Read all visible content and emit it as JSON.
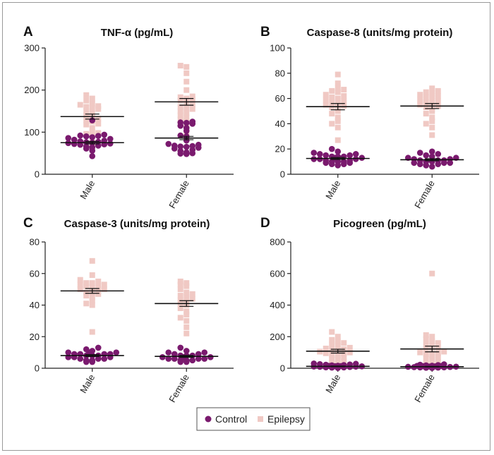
{
  "colors": {
    "control": "#7a1a6e",
    "epilepsy": "#f0c9c4",
    "axis": "#222222",
    "mean": "#111111"
  },
  "legend": {
    "control_label": "Control",
    "epilepsy_label": "Epilepsy"
  },
  "chart_data": [
    {
      "type": "scatter",
      "panel": "A",
      "title": "TNF-α (pg/mL)",
      "categories": [
        "Male",
        "Female"
      ],
      "ylim": [
        0,
        300
      ],
      "yticks": [
        0,
        100,
        200,
        300
      ],
      "series": [
        {
          "name": "Control",
          "mean": [
            75,
            86
          ],
          "sem": [
            3,
            4
          ],
          "values": [
            [
              43,
              56,
              61,
              64,
              66,
              68,
              70,
              71,
              72,
              73,
              74,
              75,
              76,
              77,
              78,
              80,
              82,
              84,
              86,
              88,
              90,
              91,
              92,
              94,
              128
            ],
            [
              48,
              49,
              50,
              52,
              55,
              58,
              61,
              63,
              65,
              66,
              67,
              68,
              70,
              72,
              80,
              90,
              92,
              103,
              110,
              115,
              120,
              122,
              123,
              125
            ]
          ]
        },
        {
          "name": "Epilepsy",
          "mean": [
            137,
            172
          ],
          "sem": [
            6,
            8
          ],
          "values": [
            [
              68,
              76,
              93,
              96,
              98,
              100,
              110,
              118,
              120,
              125,
              128,
              132,
              135,
              140,
              145,
              150,
              155,
              158,
              160,
              162,
              165,
              168,
              175,
              180,
              188
            ],
            [
              85,
              95,
              110,
              120,
              125,
              130,
              135,
              140,
              145,
              150,
              155,
              158,
              160,
              165,
              170,
              175,
              178,
              180,
              183,
              185,
              200,
              220,
              240,
              255,
              258
            ]
          ]
        }
      ]
    },
    {
      "type": "scatter",
      "panel": "B",
      "title": "Caspase-8 (units/mg protein)",
      "categories": [
        "Male",
        "Female"
      ],
      "ylim": [
        0,
        100
      ],
      "yticks": [
        0,
        20,
        40,
        60,
        80,
        100
      ],
      "series": [
        {
          "name": "Control",
          "mean": [
            12.5,
            11.5
          ],
          "sem": [
            0.8,
            0.8
          ],
          "values": [
            [
              7,
              8,
              8,
              9,
              9,
              10,
              10,
              11,
              11,
              12,
              12,
              13,
              13,
              14,
              14,
              15,
              15,
              16,
              16,
              17,
              18,
              20,
              10,
              12,
              14
            ],
            [
              6,
              7,
              8,
              8,
              9,
              9,
              10,
              10,
              11,
              11,
              12,
              12,
              13,
              13,
              14,
              15,
              16,
              17,
              18,
              9,
              11
            ]
          ]
        },
        {
          "name": "Epilepsy",
          "mean": [
            53.5,
            54
          ],
          "sem": [
            2.5,
            2
          ],
          "values": [
            [
              27,
              37,
              40,
              42,
              45,
              48,
              50,
              52,
              53,
              54,
              55,
              56,
              57,
              58,
              59,
              60,
              61,
              62,
              63,
              65,
              66,
              67,
              68,
              72,
              79
            ],
            [
              31,
              37,
              40,
              42,
              45,
              48,
              50,
              52,
              53,
              54,
              55,
              56,
              57,
              58,
              59,
              60,
              61,
              62,
              63,
              64,
              65,
              66,
              68
            ]
          ]
        }
      ]
    },
    {
      "type": "scatter",
      "panel": "C",
      "title": "Caspase-3 (units/mg protein)",
      "categories": [
        "Male",
        "Female"
      ],
      "ylim": [
        0,
        80
      ],
      "yticks": [
        0,
        20,
        40,
        60,
        80
      ],
      "series": [
        {
          "name": "Control",
          "mean": [
            8,
            7.5
          ],
          "sem": [
            0.6,
            0.6
          ],
          "values": [
            [
              4,
              4,
              5,
              5,
              6,
              6,
              6,
              7,
              7,
              8,
              8,
              8,
              9,
              9,
              9,
              10,
              10,
              10,
              11,
              12,
              13,
              7,
              9
            ],
            [
              4,
              4,
              5,
              5,
              5,
              6,
              6,
              6,
              7,
              7,
              7,
              8,
              8,
              8,
              9,
              9,
              10,
              10,
              11,
              13,
              6
            ]
          ]
        },
        {
          "name": "Epilepsy",
          "mean": [
            49,
            41
          ],
          "sem": [
            1.5,
            1.8
          ],
          "values": [
            [
              23,
              40,
              41,
              43,
              45,
              46,
              47,
              48,
              49,
              50,
              51,
              52,
              52,
              53,
              53,
              54,
              54,
              55,
              56,
              59,
              68,
              48,
              50
            ],
            [
              22,
              26,
              30,
              32,
              34,
              36,
              38,
              40,
              41,
              42,
              43,
              44,
              45,
              46,
              47,
              48,
              50,
              52,
              53,
              54,
              55
            ]
          ]
        }
      ]
    },
    {
      "type": "scatter",
      "panel": "D",
      "title": "Picogreen (pg/mL)",
      "categories": [
        "Male",
        "Female"
      ],
      "ylim": [
        0,
        800
      ],
      "yticks": [
        0,
        200,
        400,
        600,
        800
      ],
      "series": [
        {
          "name": "Control",
          "mean": [
            12,
            10
          ],
          "sem": [
            2,
            2
          ],
          "values": [
            [
              2,
              4,
              5,
              6,
              8,
              9,
              10,
              11,
              12,
              13,
              14,
              15,
              16,
              18,
              20,
              22,
              24,
              26,
              28,
              30
            ],
            [
              2,
              3,
              4,
              5,
              6,
              7,
              8,
              9,
              10,
              11,
              12,
              13,
              14,
              15,
              16,
              18,
              20,
              22,
              25
            ]
          ]
        },
        {
          "name": "Epilepsy",
          "mean": [
            108,
            122
          ],
          "sem": [
            12,
            18
          ],
          "values": [
            [
              20,
              35,
              45,
              55,
              60,
              70,
              80,
              85,
              90,
              95,
              100,
              105,
              110,
              115,
              120,
              125,
              130,
              140,
              150,
              160,
              170,
              180,
              200,
              230
            ],
            [
              20,
              30,
              40,
              55,
              65,
              70,
              80,
              90,
              95,
              100,
              105,
              110,
              120,
              130,
              140,
              150,
              160,
              170,
              185,
              200,
              210,
              600
            ]
          ]
        }
      ]
    }
  ]
}
